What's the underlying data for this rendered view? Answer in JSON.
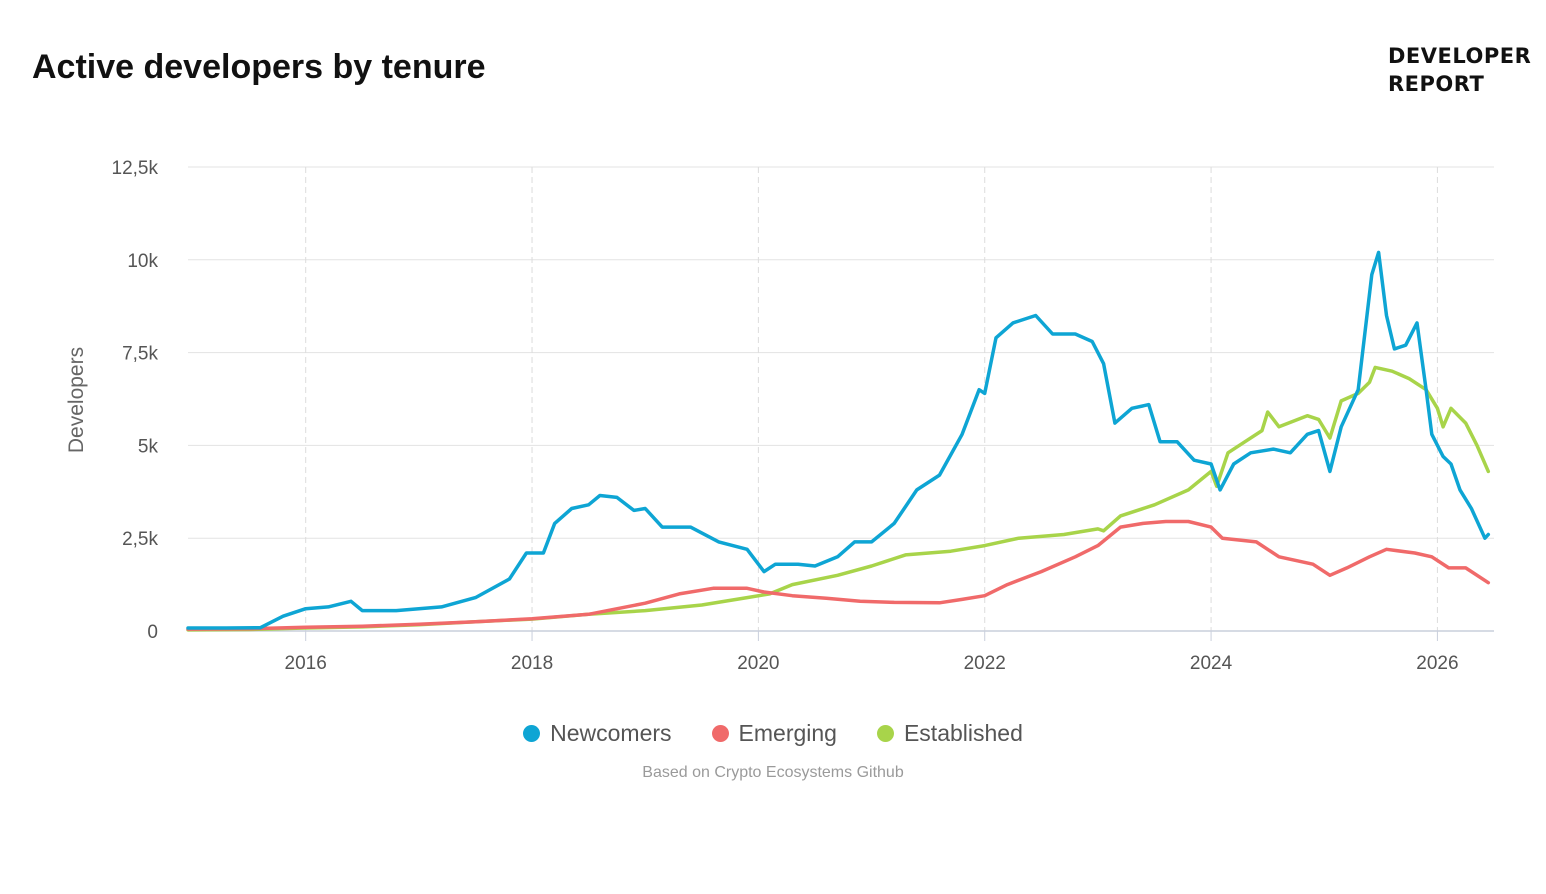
{
  "header": {
    "title": "Active developers by tenure",
    "brand_line1": "DEVELOPER",
    "brand_line2": "REPORT"
  },
  "footer": {
    "source": "Based on Crypto Ecosystems Github"
  },
  "chart_data": {
    "type": "line",
    "title": "Active developers by tenure",
    "xlabel": "",
    "ylabel": "Developers",
    "xlim": [
      2014.96,
      2026.5
    ],
    "ylim": [
      0,
      12500
    ],
    "x_ticks": [
      2016,
      2018,
      2020,
      2022,
      2024,
      2026
    ],
    "x_tick_labels": [
      "2016",
      "2018",
      "2020",
      "2022",
      "2024",
      "2026"
    ],
    "y_ticks": [
      0,
      2500,
      5000,
      7500,
      10000,
      12500
    ],
    "y_tick_labels": [
      "0",
      "2,5k",
      "5k",
      "7,5k",
      "10k",
      "12,5k"
    ],
    "grid": {
      "horizontal": true,
      "vertical_dashed": true
    },
    "legend_position": "bottom-center",
    "series": [
      {
        "name": "Newcomers",
        "color": "#0ea5d4",
        "points": [
          [
            2014.96,
            80
          ],
          [
            2015.3,
            80
          ],
          [
            2015.6,
            90
          ],
          [
            2015.8,
            400
          ],
          [
            2016.0,
            600
          ],
          [
            2016.2,
            650
          ],
          [
            2016.4,
            800
          ],
          [
            2016.5,
            550
          ],
          [
            2016.8,
            550
          ],
          [
            2017.0,
            600
          ],
          [
            2017.2,
            650
          ],
          [
            2017.5,
            900
          ],
          [
            2017.8,
            1400
          ],
          [
            2017.95,
            2100
          ],
          [
            2018.1,
            2100
          ],
          [
            2018.2,
            2900
          ],
          [
            2018.35,
            3300
          ],
          [
            2018.5,
            3400
          ],
          [
            2018.6,
            3650
          ],
          [
            2018.75,
            3600
          ],
          [
            2018.9,
            3250
          ],
          [
            2019.0,
            3300
          ],
          [
            2019.15,
            2800
          ],
          [
            2019.4,
            2800
          ],
          [
            2019.65,
            2400
          ],
          [
            2019.9,
            2200
          ],
          [
            2020.05,
            1600
          ],
          [
            2020.15,
            1800
          ],
          [
            2020.35,
            1800
          ],
          [
            2020.5,
            1750
          ],
          [
            2020.7,
            2000
          ],
          [
            2020.85,
            2400
          ],
          [
            2021.0,
            2400
          ],
          [
            2021.2,
            2900
          ],
          [
            2021.4,
            3800
          ],
          [
            2021.6,
            4200
          ],
          [
            2021.8,
            5300
          ],
          [
            2021.95,
            6500
          ],
          [
            2022.0,
            6400
          ],
          [
            2022.1,
            7900
          ],
          [
            2022.25,
            8300
          ],
          [
            2022.45,
            8500
          ],
          [
            2022.6,
            8000
          ],
          [
            2022.8,
            8000
          ],
          [
            2022.95,
            7800
          ],
          [
            2023.05,
            7200
          ],
          [
            2023.15,
            5600
          ],
          [
            2023.3,
            6000
          ],
          [
            2023.45,
            6100
          ],
          [
            2023.55,
            5100
          ],
          [
            2023.7,
            5100
          ],
          [
            2023.85,
            4600
          ],
          [
            2024.0,
            4500
          ],
          [
            2024.08,
            3800
          ],
          [
            2024.2,
            4500
          ],
          [
            2024.35,
            4800
          ],
          [
            2024.55,
            4900
          ],
          [
            2024.7,
            4800
          ],
          [
            2024.85,
            5300
          ],
          [
            2024.95,
            5400
          ],
          [
            2025.05,
            4300
          ],
          [
            2025.15,
            5500
          ],
          [
            2025.3,
            6500
          ],
          [
            2025.42,
            9600
          ],
          [
            2025.48,
            10200
          ],
          [
            2025.55,
            8500
          ],
          [
            2025.62,
            7600
          ],
          [
            2025.72,
            7700
          ],
          [
            2025.82,
            8300
          ],
          [
            2025.9,
            6500
          ],
          [
            2025.95,
            5300
          ],
          [
            2026.05,
            4700
          ],
          [
            2026.12,
            4500
          ],
          [
            2026.2,
            3800
          ],
          [
            2026.3,
            3300
          ],
          [
            2026.42,
            2500
          ],
          [
            2026.45,
            2600
          ]
        ]
      },
      {
        "name": "Emerging",
        "color": "#f06a6a",
        "points": [
          [
            2014.96,
            50
          ],
          [
            2015.5,
            60
          ],
          [
            2016.0,
            100
          ],
          [
            2016.5,
            130
          ],
          [
            2017.0,
            180
          ],
          [
            2017.5,
            250
          ],
          [
            2018.0,
            330
          ],
          [
            2018.5,
            450
          ],
          [
            2019.0,
            750
          ],
          [
            2019.3,
            1000
          ],
          [
            2019.6,
            1150
          ],
          [
            2019.9,
            1150
          ],
          [
            2020.05,
            1050
          ],
          [
            2020.3,
            950
          ],
          [
            2020.6,
            880
          ],
          [
            2020.9,
            800
          ],
          [
            2021.2,
            770
          ],
          [
            2021.6,
            760
          ],
          [
            2021.8,
            850
          ],
          [
            2022.0,
            950
          ],
          [
            2022.2,
            1250
          ],
          [
            2022.5,
            1600
          ],
          [
            2022.8,
            2000
          ],
          [
            2023.0,
            2300
          ],
          [
            2023.2,
            2800
          ],
          [
            2023.4,
            2900
          ],
          [
            2023.6,
            2950
          ],
          [
            2023.8,
            2950
          ],
          [
            2024.0,
            2800
          ],
          [
            2024.1,
            2500
          ],
          [
            2024.4,
            2400
          ],
          [
            2024.6,
            2000
          ],
          [
            2024.9,
            1800
          ],
          [
            2025.05,
            1500
          ],
          [
            2025.2,
            1700
          ],
          [
            2025.4,
            2000
          ],
          [
            2025.55,
            2200
          ],
          [
            2025.8,
            2100
          ],
          [
            2025.95,
            2000
          ],
          [
            2026.1,
            1700
          ],
          [
            2026.25,
            1700
          ],
          [
            2026.45,
            1300
          ]
        ]
      },
      {
        "name": "Established",
        "color": "#a8d44a",
        "points": [
          [
            2014.96,
            30
          ],
          [
            2015.5,
            40
          ],
          [
            2016.0,
            80
          ],
          [
            2016.5,
            110
          ],
          [
            2017.0,
            170
          ],
          [
            2017.5,
            250
          ],
          [
            2018.0,
            320
          ],
          [
            2018.5,
            450
          ],
          [
            2019.0,
            550
          ],
          [
            2019.5,
            700
          ],
          [
            2019.9,
            900
          ],
          [
            2020.1,
            1000
          ],
          [
            2020.3,
            1250
          ],
          [
            2020.7,
            1500
          ],
          [
            2021.0,
            1750
          ],
          [
            2021.3,
            2050
          ],
          [
            2021.7,
            2150
          ],
          [
            2022.0,
            2300
          ],
          [
            2022.3,
            2500
          ],
          [
            2022.7,
            2600
          ],
          [
            2023.0,
            2750
          ],
          [
            2023.05,
            2700
          ],
          [
            2023.2,
            3100
          ],
          [
            2023.5,
            3400
          ],
          [
            2023.8,
            3800
          ],
          [
            2024.0,
            4300
          ],
          [
            2024.05,
            3900
          ],
          [
            2024.15,
            4800
          ],
          [
            2024.3,
            5100
          ],
          [
            2024.45,
            5400
          ],
          [
            2024.5,
            5900
          ],
          [
            2024.6,
            5500
          ],
          [
            2024.85,
            5800
          ],
          [
            2024.95,
            5700
          ],
          [
            2025.05,
            5200
          ],
          [
            2025.15,
            6200
          ],
          [
            2025.3,
            6400
          ],
          [
            2025.4,
            6700
          ],
          [
            2025.45,
            7100
          ],
          [
            2025.6,
            7000
          ],
          [
            2025.75,
            6800
          ],
          [
            2025.9,
            6500
          ],
          [
            2026.0,
            6000
          ],
          [
            2026.05,
            5500
          ],
          [
            2026.12,
            6000
          ],
          [
            2026.25,
            5600
          ],
          [
            2026.35,
            5000
          ],
          [
            2026.45,
            4300
          ]
        ]
      }
    ]
  }
}
